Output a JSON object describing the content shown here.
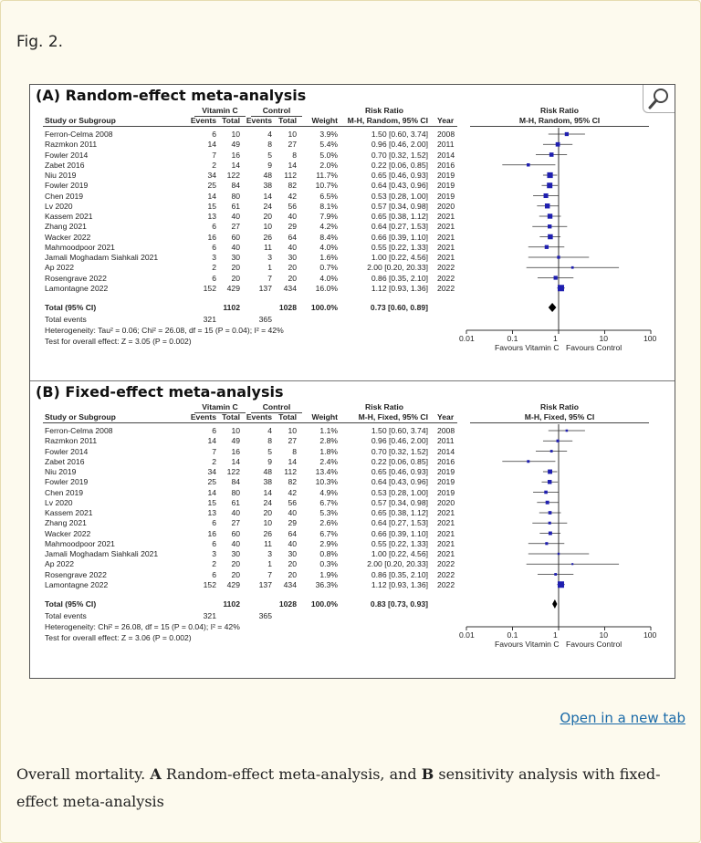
{
  "page": {
    "fig_label": "Fig. 2.",
    "open_link": "Open in a new tab",
    "caption": {
      "p1": "Overall mortality. ",
      "a": "A",
      "p2": " Random-effect meta-analysis, and ",
      "b": "B",
      "p3": " sensitivity analysis with fixed-effect meta-analysis"
    }
  },
  "headers": {
    "vitc": "Vitamin C",
    "control": "Control",
    "study": "Study or Subgroup",
    "events": "Events",
    "total": "Total",
    "weight": "Weight",
    "risk_ratio": "Risk Ratio",
    "year": "Year"
  },
  "panels": [
    {
      "title": "(A) Random-effect meta-analysis",
      "method_label": "M-H, Random, 95% CI",
      "plot_label": "M-H, Random, 95% CI",
      "rows": [
        {
          "study": "Ferron-Celma 2008",
          "e1": "6",
          "t1": "10",
          "e2": "4",
          "t2": "10",
          "w": "3.9%",
          "ci": "1.50 [0.60, 3.74]",
          "year": "2008"
        },
        {
          "study": "Razmkon 2011",
          "e1": "14",
          "t1": "49",
          "e2": "8",
          "t2": "27",
          "w": "5.4%",
          "ci": "0.96 [0.46, 2.00]",
          "year": "2011"
        },
        {
          "study": "Fowler 2014",
          "e1": "7",
          "t1": "16",
          "e2": "5",
          "t2": "8",
          "w": "5.0%",
          "ci": "0.70 [0.32, 1.52]",
          "year": "2014"
        },
        {
          "study": "Zabet 2016",
          "e1": "2",
          "t1": "14",
          "e2": "9",
          "t2": "14",
          "w": "2.0%",
          "ci": "0.22 [0.06, 0.85]",
          "year": "2016"
        },
        {
          "study": "Niu 2019",
          "e1": "34",
          "t1": "122",
          "e2": "48",
          "t2": "112",
          "w": "11.7%",
          "ci": "0.65 [0.46, 0.93]",
          "year": "2019"
        },
        {
          "study": "Fowler 2019",
          "e1": "25",
          "t1": "84",
          "e2": "38",
          "t2": "82",
          "w": "10.7%",
          "ci": "0.64 [0.43, 0.96]",
          "year": "2019"
        },
        {
          "study": "Chen 2019",
          "e1": "14",
          "t1": "80",
          "e2": "14",
          "t2": "42",
          "w": "6.5%",
          "ci": "0.53 [0.28, 1.00]",
          "year": "2019"
        },
        {
          "study": "Lv 2020",
          "e1": "15",
          "t1": "61",
          "e2": "24",
          "t2": "56",
          "w": "8.1%",
          "ci": "0.57 [0.34, 0.98]",
          "year": "2020"
        },
        {
          "study": "Kassem 2021",
          "e1": "13",
          "t1": "40",
          "e2": "20",
          "t2": "40",
          "w": "7.9%",
          "ci": "0.65 [0.38, 1.12]",
          "year": "2021"
        },
        {
          "study": "Zhang 2021",
          "e1": "6",
          "t1": "27",
          "e2": "10",
          "t2": "29",
          "w": "4.2%",
          "ci": "0.64 [0.27, 1.53]",
          "year": "2021"
        },
        {
          "study": "Wacker 2022",
          "e1": "16",
          "t1": "60",
          "e2": "26",
          "t2": "64",
          "w": "8.4%",
          "ci": "0.66 [0.39, 1.10]",
          "year": "2021"
        },
        {
          "study": "Mahmoodpoor 2021",
          "e1": "6",
          "t1": "40",
          "e2": "11",
          "t2": "40",
          "w": "4.0%",
          "ci": "0.55 [0.22, 1.33]",
          "year": "2021"
        },
        {
          "study": "Jamali Moghadam Siahkali 2021",
          "e1": "3",
          "t1": "30",
          "e2": "3",
          "t2": "30",
          "w": "1.6%",
          "ci": "1.00 [0.22, 4.56]",
          "year": "2021"
        },
        {
          "study": "Ap 2022",
          "e1": "2",
          "t1": "20",
          "e2": "1",
          "t2": "20",
          "w": "0.7%",
          "ci": "2.00 [0.20, 20.33]",
          "year": "2022"
        },
        {
          "study": "Rosengrave 2022",
          "e1": "6",
          "t1": "20",
          "e2": "7",
          "t2": "20",
          "w": "4.0%",
          "ci": "0.86 [0.35, 2.10]",
          "year": "2022"
        },
        {
          "study": "Lamontagne 2022",
          "e1": "152",
          "t1": "429",
          "e2": "137",
          "t2": "434",
          "w": "16.0%",
          "ci": "1.12 [0.93, 1.36]",
          "year": "2022"
        }
      ],
      "total": {
        "label": "Total (95% CI)",
        "t1": "1102",
        "t2": "1028",
        "w": "100.0%",
        "ci": "0.73 [0.60, 0.89]"
      },
      "total_events": {
        "label": "Total events",
        "e1": "321",
        "e2": "365"
      },
      "heterogeneity": "Heterogeneity: Tau² = 0.06; Chi² = 26.08, df = 15 (P = 0.04); I² = 42%",
      "overall_effect": "Test for overall effect: Z = 3.05 (P = 0.002)",
      "axis_ticks": [
        "0.01",
        "0.1",
        "1",
        "10",
        "100"
      ],
      "favours_left": "Favours Vitamin C",
      "favours_right": "Favours Control"
    },
    {
      "title": "(B) Fixed-effect meta-analysis",
      "method_label": "M-H, Fixed, 95% CI",
      "plot_label": "M-H, Fixed, 95% CI",
      "rows": [
        {
          "study": "Ferron-Celma 2008",
          "e1": "6",
          "t1": "10",
          "e2": "4",
          "t2": "10",
          "w": "1.1%",
          "ci": "1.50 [0.60, 3.74]",
          "year": "2008"
        },
        {
          "study": "Razmkon 2011",
          "e1": "14",
          "t1": "49",
          "e2": "8",
          "t2": "27",
          "w": "2.8%",
          "ci": "0.96 [0.46, 2.00]",
          "year": "2011"
        },
        {
          "study": "Fowler 2014",
          "e1": "7",
          "t1": "16",
          "e2": "5",
          "t2": "8",
          "w": "1.8%",
          "ci": "0.70 [0.32, 1.52]",
          "year": "2014"
        },
        {
          "study": "Zabet 2016",
          "e1": "2",
          "t1": "14",
          "e2": "9",
          "t2": "14",
          "w": "2.4%",
          "ci": "0.22 [0.06, 0.85]",
          "year": "2016"
        },
        {
          "study": "Niu 2019",
          "e1": "34",
          "t1": "122",
          "e2": "48",
          "t2": "112",
          "w": "13.4%",
          "ci": "0.65 [0.46, 0.93]",
          "year": "2019"
        },
        {
          "study": "Fowler 2019",
          "e1": "25",
          "t1": "84",
          "e2": "38",
          "t2": "82",
          "w": "10.3%",
          "ci": "0.64 [0.43, 0.96]",
          "year": "2019"
        },
        {
          "study": "Chen 2019",
          "e1": "14",
          "t1": "80",
          "e2": "14",
          "t2": "42",
          "w": "4.9%",
          "ci": "0.53 [0.28, 1.00]",
          "year": "2019"
        },
        {
          "study": "Lv 2020",
          "e1": "15",
          "t1": "61",
          "e2": "24",
          "t2": "56",
          "w": "6.7%",
          "ci": "0.57 [0.34, 0.98]",
          "year": "2020"
        },
        {
          "study": "Kassem 2021",
          "e1": "13",
          "t1": "40",
          "e2": "20",
          "t2": "40",
          "w": "5.3%",
          "ci": "0.65 [0.38, 1.12]",
          "year": "2021"
        },
        {
          "study": "Zhang 2021",
          "e1": "6",
          "t1": "27",
          "e2": "10",
          "t2": "29",
          "w": "2.6%",
          "ci": "0.64 [0.27, 1.53]",
          "year": "2021"
        },
        {
          "study": "Wacker 2022",
          "e1": "16",
          "t1": "60",
          "e2": "26",
          "t2": "64",
          "w": "6.7%",
          "ci": "0.66 [0.39, 1.10]",
          "year": "2021"
        },
        {
          "study": "Mahmoodpoor 2021",
          "e1": "6",
          "t1": "40",
          "e2": "11",
          "t2": "40",
          "w": "2.9%",
          "ci": "0.55 [0.22, 1.33]",
          "year": "2021"
        },
        {
          "study": "Jamali Moghadam Siahkali 2021",
          "e1": "3",
          "t1": "30",
          "e2": "3",
          "t2": "30",
          "w": "0.8%",
          "ci": "1.00 [0.22, 4.56]",
          "year": "2021"
        },
        {
          "study": "Ap 2022",
          "e1": "2",
          "t1": "20",
          "e2": "1",
          "t2": "20",
          "w": "0.3%",
          "ci": "2.00 [0.20, 20.33]",
          "year": "2022"
        },
        {
          "study": "Rosengrave 2022",
          "e1": "6",
          "t1": "20",
          "e2": "7",
          "t2": "20",
          "w": "1.9%",
          "ci": "0.86 [0.35, 2.10]",
          "year": "2022"
        },
        {
          "study": "Lamontagne 2022",
          "e1": "152",
          "t1": "429",
          "e2": "137",
          "t2": "434",
          "w": "36.3%",
          "ci": "1.12 [0.93, 1.36]",
          "year": "2022"
        }
      ],
      "total": {
        "label": "Total (95% CI)",
        "t1": "1102",
        "t2": "1028",
        "w": "100.0%",
        "ci": "0.83 [0.73, 0.93]"
      },
      "total_events": {
        "label": "Total events",
        "e1": "321",
        "e2": "365"
      },
      "heterogeneity": "Heterogeneity: Chi² = 26.08, df = 15 (P = 0.04); I² = 42%",
      "overall_effect": "Test for overall effect: Z = 3.06 (P = 0.002)",
      "axis_ticks": [
        "0.01",
        "0.1",
        "1",
        "10",
        "100"
      ],
      "favours_left": "Favours Vitamin C",
      "favours_right": "Favours Control"
    }
  ],
  "colors": {
    "marker": "#1f1fb0",
    "line": "#333333",
    "diamond": "#000000",
    "link": "#1a6aa8"
  },
  "icons": {
    "magnify": "magnifying-glass-icon"
  }
}
